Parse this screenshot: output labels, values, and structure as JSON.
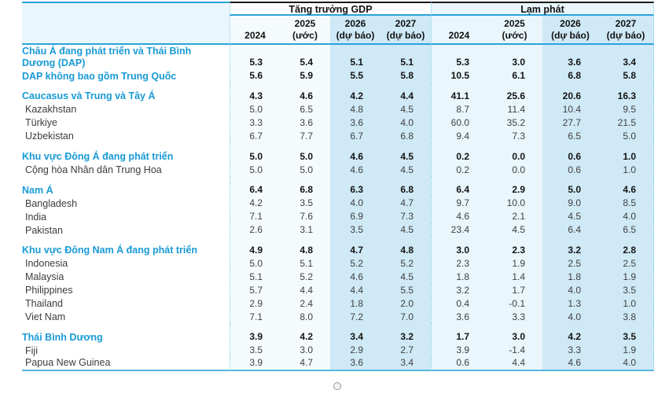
{
  "table": {
    "row_header_label": "",
    "groups": [
      {
        "label": "Tăng trưởng GDP"
      },
      {
        "label": "Lạm phát"
      }
    ],
    "year_columns": [
      {
        "year": "2024",
        "note": ""
      },
      {
        "year": "2025",
        "note": "(ước)"
      },
      {
        "year": "2026",
        "note": "(dự báo)"
      },
      {
        "year": "2027",
        "note": "(dự báo)"
      }
    ],
    "rows": [
      {
        "label": "Châu Á đang phát triển và Thái Bình Dương (DAP)",
        "level": "aggregate",
        "section_start": false,
        "gdp": [
          "5.3",
          "5.4",
          "5.1",
          "5.1"
        ],
        "inflation": [
          "5.3",
          "3.0",
          "3.6",
          "3.4"
        ]
      },
      {
        "label": "DAP không bao gồm Trung Quốc",
        "level": "aggregate",
        "section_start": false,
        "gdp": [
          "5.6",
          "5.9",
          "5.5",
          "5.8"
        ],
        "inflation": [
          "10.5",
          "6.1",
          "6.8",
          "5.8"
        ]
      },
      {
        "label": "Caucasus và Trung và Tây Á",
        "level": "aggregate",
        "section_start": true,
        "gdp": [
          "4.3",
          "4.6",
          "4.2",
          "4.4"
        ],
        "inflation": [
          "41.1",
          "25.6",
          "20.6",
          "16.3"
        ]
      },
      {
        "label": "Kazakhstan",
        "level": "country",
        "section_start": false,
        "gdp": [
          "5.0",
          "6.5",
          "4.8",
          "4.5"
        ],
        "inflation": [
          "8.7",
          "11.4",
          "10.4",
          "9.5"
        ]
      },
      {
        "label": "Türkiye",
        "level": "country",
        "section_start": false,
        "gdp": [
          "3.3",
          "3.6",
          "3.6",
          "4.0"
        ],
        "inflation": [
          "60.0",
          "35.2",
          "27.7",
          "21.5"
        ]
      },
      {
        "label": "Uzbekistan",
        "level": "country",
        "section_start": false,
        "gdp": [
          "6.7",
          "7.7",
          "6.7",
          "6.8"
        ],
        "inflation": [
          "9.4",
          "7.3",
          "6.5",
          "5.0"
        ]
      },
      {
        "label": "Khu vực Đông Á đang phát triển",
        "level": "aggregate",
        "section_start": true,
        "gdp": [
          "5.0",
          "5.0",
          "4.6",
          "4.5"
        ],
        "inflation": [
          "0.2",
          "0.0",
          "0.6",
          "1.0"
        ]
      },
      {
        "label": "Cộng hòa Nhân dân Trung Hoa",
        "level": "country",
        "section_start": false,
        "gdp": [
          "5.0",
          "5.0",
          "4.6",
          "4.5"
        ],
        "inflation": [
          "0.2",
          "0.0",
          "0.6",
          "1.0"
        ]
      },
      {
        "label": "Nam Á",
        "level": "aggregate",
        "section_start": true,
        "gdp": [
          "6.4",
          "6.8",
          "6.3",
          "6.8"
        ],
        "inflation": [
          "6.4",
          "2.9",
          "5.0",
          "4.6"
        ]
      },
      {
        "label": "Bangladesh",
        "level": "country",
        "section_start": false,
        "gdp": [
          "4.2",
          "3.5",
          "4.0",
          "4.7"
        ],
        "inflation": [
          "9.7",
          "10.0",
          "9.0",
          "8.5"
        ]
      },
      {
        "label": "India",
        "level": "country",
        "section_start": false,
        "gdp": [
          "7.1",
          "7.6",
          "6.9",
          "7.3"
        ],
        "inflation": [
          "4.6",
          "2.1",
          "4.5",
          "4.0"
        ]
      },
      {
        "label": "Pakistan",
        "level": "country",
        "section_start": false,
        "gdp": [
          "2.6",
          "3.1",
          "3.5",
          "4.5"
        ],
        "inflation": [
          "23.4",
          "4.5",
          "6.4",
          "6.5"
        ]
      },
      {
        "label": "Khu vực Đông Nam Á đang phát triển",
        "level": "aggregate",
        "section_start": true,
        "gdp": [
          "4.9",
          "4.8",
          "4.7",
          "4.8"
        ],
        "inflation": [
          "3.0",
          "2.3",
          "3.2",
          "2.8"
        ]
      },
      {
        "label": "Indonesia",
        "level": "country",
        "section_start": false,
        "gdp": [
          "5.0",
          "5.1",
          "5.2",
          "5.2"
        ],
        "inflation": [
          "2.3",
          "1.9",
          "2.5",
          "2.5"
        ]
      },
      {
        "label": "Malaysia",
        "level": "country",
        "section_start": false,
        "gdp": [
          "5.1",
          "5.2",
          "4.6",
          "4.5"
        ],
        "inflation": [
          "1.8",
          "1.4",
          "1.8",
          "1.9"
        ]
      },
      {
        "label": "Philippines",
        "level": "country",
        "section_start": false,
        "gdp": [
          "5.7",
          "4.4",
          "4.4",
          "5.5"
        ],
        "inflation": [
          "3.2",
          "1.7",
          "4.0",
          "3.5"
        ]
      },
      {
        "label": "Thailand",
        "level": "country",
        "section_start": false,
        "gdp": [
          "2.9",
          "2.4",
          "1.8",
          "2.0"
        ],
        "inflation": [
          "0.4",
          "-0.1",
          "1.3",
          "1.0"
        ]
      },
      {
        "label": "Viet Nam",
        "level": "country",
        "section_start": false,
        "gdp": [
          "7.1",
          "8.0",
          "7.2",
          "7.0"
        ],
        "inflation": [
          "3.6",
          "3.3",
          "4.0",
          "3.8"
        ]
      },
      {
        "label": "Thái Bình Dương",
        "level": "aggregate",
        "section_start": true,
        "gdp": [
          "3.9",
          "4.2",
          "3.4",
          "3.2"
        ],
        "inflation": [
          "1.7",
          "3.0",
          "4.2",
          "3.5"
        ]
      },
      {
        "label": "Fiji",
        "level": "country",
        "section_start": false,
        "gdp": [
          "3.5",
          "3.0",
          "2.9",
          "2.7"
        ],
        "inflation": [
          "3.9",
          "-1.4",
          "3.3",
          "1.9"
        ]
      },
      {
        "label": "Papua New Guinea",
        "level": "country",
        "section_start": false,
        "gdp": [
          "3.9",
          "4.7",
          "3.6",
          "3.4"
        ],
        "inflation": [
          "0.6",
          "4.4",
          "4.6",
          "4.0"
        ]
      }
    ]
  },
  "colors": {
    "accent_blue_text": "#189ad5",
    "rule_blue": "#2aa4da",
    "rule_black": "#1a1a1a",
    "dotted_separator": "#7ed0ec",
    "forecast_column_bg": "#cfe9f6",
    "inflation_column_bg": "#e9f6fc",
    "gdp_column_bg": "#f5fbfd",
    "bottom_rule": "#55b7e3"
  }
}
